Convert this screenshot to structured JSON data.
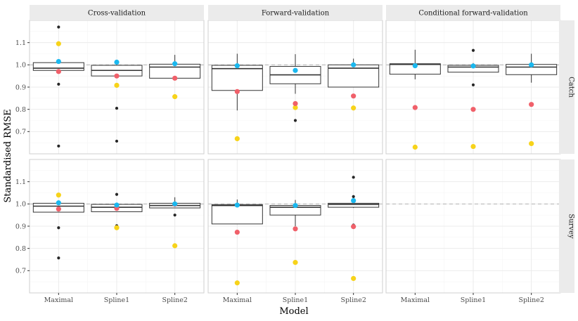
{
  "chart_data": {
    "type": "boxplot",
    "xlabel": "Model",
    "ylabel": "Standardised RMSE",
    "ylim": [
      0.6,
      1.2
    ],
    "yticks": [
      0.7,
      0.8,
      0.9,
      1.0,
      1.1
    ],
    "ytick_labels": [
      "0.7",
      "0.8",
      "0.9",
      "1.0",
      "1.1"
    ],
    "reference_line": 1.0,
    "categories": [
      "Maximal",
      "Spline1",
      "Spline2"
    ],
    "columns": [
      "Cross-validation",
      "Forward-validation",
      "Conditional forward-validation"
    ],
    "rows": [
      "Catch",
      "Survey"
    ],
    "point_colors": {
      "blue": "#1ab8ef",
      "red": "#f0606a",
      "yellow": "#f7d31a",
      "outlier": "#262626"
    },
    "panels": [
      {
        "column": "Cross-validation",
        "row": "Catch",
        "boxes": [
          {
            "model": "Maximal",
            "whisker_low": 0.975,
            "q1": 0.975,
            "median": 0.985,
            "q3": 1.01,
            "whisker_high": 1.01,
            "outliers": [
              1.17,
              0.913,
              0.635
            ],
            "blue": 1.015,
            "red": 0.97,
            "yellow": 1.095
          },
          {
            "model": "Spline1",
            "whisker_low": 0.95,
            "q1": 0.95,
            "median": 0.975,
            "q3": 0.998,
            "whisker_high": 1.01,
            "outliers": [
              0.805,
              0.657
            ],
            "blue": 1.012,
            "red": 0.95,
            "yellow": 0.908
          },
          {
            "model": "Spline2",
            "whisker_low": 0.94,
            "q1": 0.94,
            "median": 0.99,
            "q3": 1.003,
            "whisker_high": 1.045,
            "outliers": [],
            "blue": 1.005,
            "red": 0.94,
            "yellow": 0.857
          }
        ]
      },
      {
        "column": "Forward-validation",
        "row": "Catch",
        "boxes": [
          {
            "model": "Maximal",
            "whisker_low": 0.795,
            "q1": 0.885,
            "median": 0.983,
            "q3": 0.998,
            "whisker_high": 1.05,
            "outliers": [],
            "blue": 0.996,
            "red": 0.88,
            "yellow": 0.668
          },
          {
            "model": "Spline1",
            "whisker_low": 0.87,
            "q1": 0.915,
            "median": 0.955,
            "q3": 0.993,
            "whisker_high": 1.048,
            "outliers": [
              0.75
            ],
            "blue": 0.975,
            "red": 0.826,
            "yellow": 0.808
          },
          {
            "model": "Spline2",
            "whisker_low": 0.9,
            "q1": 0.9,
            "median": 0.985,
            "q3": 1.0,
            "whisker_high": 1.028,
            "outliers": [],
            "blue": 1.0,
            "red": 0.86,
            "yellow": 0.806
          }
        ]
      },
      {
        "column": "Conditional forward-validation",
        "row": "Catch",
        "boxes": [
          {
            "model": "Maximal",
            "whisker_low": 0.935,
            "q1": 0.958,
            "median": 1.002,
            "q3": 1.005,
            "whisker_high": 1.068,
            "outliers": [],
            "blue": 0.996,
            "red": 0.808,
            "yellow": 0.63
          },
          {
            "model": "Spline1",
            "whisker_low": 0.965,
            "q1": 0.967,
            "median": 0.99,
            "q3": 0.998,
            "whisker_high": 1.008,
            "outliers": [
              1.065,
              0.91
            ],
            "blue": 0.995,
            "red": 0.8,
            "yellow": 0.633
          },
          {
            "model": "Spline2",
            "whisker_low": 0.92,
            "q1": 0.956,
            "median": 0.99,
            "q3": 1.002,
            "whisker_high": 1.05,
            "outliers": [],
            "blue": 1.0,
            "red": 0.822,
            "yellow": 0.646
          }
        ]
      },
      {
        "column": "Cross-validation",
        "row": "Survey",
        "boxes": [
          {
            "model": "Maximal",
            "whisker_low": 0.963,
            "q1": 0.963,
            "median": 0.99,
            "q3": 1.003,
            "whisker_high": 1.003,
            "outliers": [
              0.893,
              0.757
            ],
            "blue": 1.005,
            "red": 0.977,
            "yellow": 1.04
          },
          {
            "model": "Spline1",
            "whisker_low": 0.965,
            "q1": 0.965,
            "median": 0.985,
            "q3": 0.998,
            "whisker_high": 1.0,
            "outliers": [
              1.043,
              0.902
            ],
            "blue": 0.995,
            "red": 0.98,
            "yellow": 0.893
          },
          {
            "model": "Spline2",
            "whisker_low": 0.982,
            "q1": 0.982,
            "median": 0.993,
            "q3": 1.003,
            "whisker_high": 1.03,
            "outliers": [
              0.95
            ],
            "blue": 1.0,
            "red": 0.998,
            "yellow": 0.812
          }
        ]
      },
      {
        "column": "Forward-validation",
        "row": "Survey",
        "boxes": [
          {
            "model": "Maximal",
            "whisker_low": 0.91,
            "q1": 0.91,
            "median": 0.993,
            "q3": 0.997,
            "whisker_high": 1.02,
            "outliers": [],
            "blue": 0.995,
            "red": 0.873,
            "yellow": 0.645
          },
          {
            "model": "Spline1",
            "whisker_low": 0.9,
            "q1": 0.95,
            "median": 0.985,
            "q3": 0.993,
            "whisker_high": 1.018,
            "outliers": [],
            "blue": 0.993,
            "red": 0.888,
            "yellow": 0.737
          },
          {
            "model": "Spline2",
            "whisker_low": 0.982,
            "q1": 0.985,
            "median": 0.998,
            "q3": 1.003,
            "whisker_high": 1.015,
            "outliers": [
              1.12,
              1.033,
              0.905
            ],
            "blue": 1.015,
            "red": 0.898,
            "yellow": 0.665
          }
        ]
      },
      {
        "column": "Conditional forward-validation",
        "row": "Survey",
        "boxes": []
      }
    ]
  }
}
